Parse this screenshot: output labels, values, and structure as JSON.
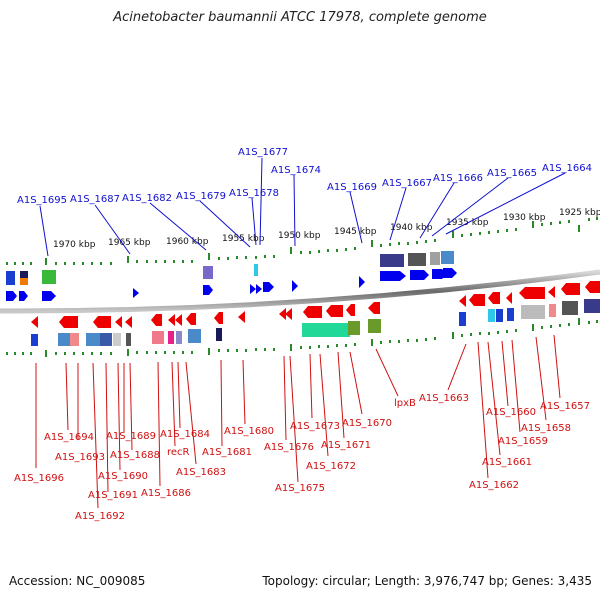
{
  "title": "Acinetobacter baumannii ATCC 17978, complete genome",
  "footer": {
    "accession": "Accession: NC_009085",
    "topology": "Topology: circular; Length: 3,976,747 bp; Genes: 3,435"
  },
  "colors": {
    "forward": "#0000ee",
    "reverse": "#ee0000",
    "backbone": "#8a8a8a",
    "ticks": "#2a8a2a"
  },
  "axis": {
    "tick_labels": [
      "1970 kbp",
      "1965 kbp",
      "1960 kbp",
      "1955 kbp",
      "1950 kbp",
      "1945 kbp",
      "1940 kbp",
      "1935 kbp",
      "1930 kbp",
      "1925 kbp"
    ]
  },
  "labels": {
    "forward": [
      "A1S_1695",
      "A1S_1687",
      "A1S_1682",
      "A1S_1679",
      "A1S_1678",
      "A1S_1677",
      "A1S_1674",
      "A1S_1669",
      "A1S_1667",
      "A1S_1666",
      "A1S_1665",
      "A1S_1664"
    ],
    "reverse": [
      "A1S_1696",
      "A1S_1694",
      "A1S_1693",
      "A1S_1692",
      "A1S_1691",
      "A1S_1690",
      "A1S_1689",
      "A1S_1688",
      "A1S_1686",
      "recR",
      "A1S_1684",
      "A1S_1683",
      "A1S_1681",
      "A1S_1680",
      "A1S_1676",
      "A1S_1675",
      "A1S_1673",
      "A1S_1672",
      "A1S_1671",
      "A1S_1670",
      "lpxB",
      "A1S_1663",
      "A1S_1662",
      "A1S_1661",
      "A1S_1660",
      "A1S_1659",
      "A1S_1658",
      "A1S_1657"
    ]
  }
}
